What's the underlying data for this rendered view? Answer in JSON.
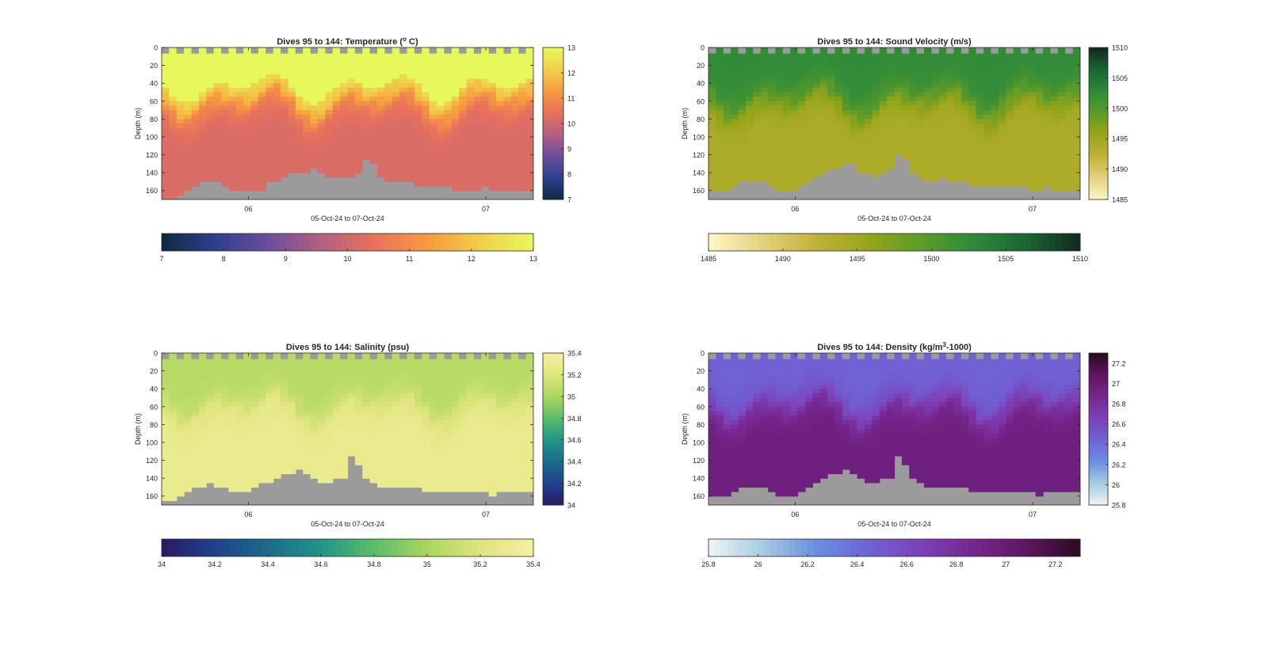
{
  "chart_data": [
    {
      "type": "heatmap",
      "title": "Dives 95 to 144: Temperature (° C)",
      "title_main": "Dives 95 to 144: Temperature (",
      "title_sup": "o",
      "title_tail": " C)",
      "xlabel": "05-Oct-24 to 07-Oct-24",
      "ylabel": "Depth (m)",
      "ylim": [
        170,
        0
      ],
      "yticks": [
        0,
        20,
        40,
        60,
        80,
        100,
        120,
        140,
        160
      ],
      "xticks": [
        "06",
        "07"
      ],
      "xtick_days": [
        1.0,
        2.0
      ],
      "x_range_days": [
        0.635,
        2.2
      ],
      "colorbar_range": [
        7,
        13
      ],
      "colorbar_ticks": [
        7,
        8,
        9,
        10,
        11,
        12,
        13
      ],
      "colormap": [
        "#0d2a3f",
        "#2e3f8f",
        "#6b4d9c",
        "#b35f82",
        "#e8715c",
        "#f79a3e",
        "#f0d04a",
        "#e6f85c"
      ],
      "field": {
        "surface_value": 12.7,
        "bottom_value": 10.2,
        "mixed_layer_depth_m": 60,
        "mixed_layer_variation_m": 20,
        "surface_color": "#e6f85c"
      },
      "bottom_depth_m": [
        170,
        168,
        165,
        160,
        155,
        152,
        150,
        152,
        155,
        160,
        162,
        161,
        160,
        158,
        152,
        148,
        145,
        142,
        140,
        138,
        137,
        140,
        143,
        146,
        147,
        144,
        140,
        125,
        132,
        145,
        150,
        152,
        152,
        152,
        153,
        154,
        155,
        156,
        157,
        158,
        159,
        158,
        158,
        157,
        158,
        159,
        160,
        158,
        159,
        160
      ]
    },
    {
      "type": "heatmap",
      "title": "Dives 95 to 144: Sound Velocity (m/s)",
      "title_main": "Dives 95 to 144: Sound Velocity (m/s)",
      "title_sup": "",
      "title_tail": "",
      "xlabel": "05-Oct-24 to 07-Oct-24",
      "ylabel": "Depth (m)",
      "ylim": [
        170,
        0
      ],
      "yticks": [
        0,
        20,
        40,
        60,
        80,
        100,
        120,
        140,
        160
      ],
      "xticks": [
        "06",
        "07"
      ],
      "xtick_days": [
        1.0,
        2.0
      ],
      "x_range_days": [
        0.635,
        2.2
      ],
      "colorbar_range": [
        1485,
        1510
      ],
      "colorbar_ticks": [
        1485,
        1490,
        1495,
        1500,
        1505,
        1510
      ],
      "colormap": [
        "#fdf7c9",
        "#e4d27e",
        "#c2b33a",
        "#98a51a",
        "#5d9b28",
        "#2c8a3a",
        "#1a6534",
        "#12291c"
      ],
      "field": {
        "surface_value": 1502.5,
        "bottom_value": 1494.0,
        "mixed_layer_depth_m": 60,
        "mixed_layer_variation_m": 20,
        "surface_color": ""
      },
      "bottom_depth_m": [
        162,
        160,
        158,
        156,
        152,
        150,
        148,
        150,
        155,
        158,
        160,
        158,
        156,
        150,
        145,
        140,
        137,
        133,
        130,
        132,
        138,
        142,
        145,
        140,
        136,
        118,
        125,
        138,
        145,
        148,
        148,
        147,
        149,
        150,
        152,
        153,
        154,
        155,
        156,
        157,
        157,
        156,
        157,
        158,
        158,
        157,
        158,
        159,
        158,
        159
      ]
    },
    {
      "type": "heatmap",
      "title": "Dives 95 to 144: Salinity (psu)",
      "title_main": "Dives 95 to 144: Salinity (psu)",
      "title_sup": "",
      "title_tail": "",
      "xlabel": "05-Oct-24 to 07-Oct-24",
      "ylabel": "Depth (m)",
      "ylim": [
        170,
        0
      ],
      "yticks": [
        0,
        20,
        40,
        60,
        80,
        100,
        120,
        140,
        160
      ],
      "xticks": [
        "06",
        "07"
      ],
      "xtick_days": [
        1.0,
        2.0
      ],
      "x_range_days": [
        0.635,
        2.2
      ],
      "colorbar_range": [
        34,
        35.4
      ],
      "colorbar_ticks": [
        34,
        34.2,
        34.4,
        34.6,
        34.8,
        35,
        35.2,
        35.4
      ],
      "colormap": [
        "#2a1a63",
        "#21418f",
        "#1b6b8c",
        "#209586",
        "#5bbd6a",
        "#a9d65c",
        "#dfe57e",
        "#f6efa0"
      ],
      "field": {
        "surface_value": 35.05,
        "bottom_value": 35.3,
        "mixed_layer_depth_m": 60,
        "mixed_layer_variation_m": 20,
        "surface_color": ""
      },
      "bottom_depth_m": [
        165,
        163,
        160,
        155,
        150,
        148,
        145,
        148,
        152,
        155,
        157,
        156,
        152,
        147,
        143,
        140,
        137,
        133,
        132,
        134,
        140,
        144,
        146,
        142,
        138,
        115,
        125,
        140,
        146,
        148,
        148,
        149,
        150,
        151,
        152,
        153,
        154,
        155,
        156,
        155,
        156,
        157,
        156,
        157,
        158,
        157,
        156,
        157,
        156,
        155
      ]
    },
    {
      "type": "heatmap",
      "title": "Dives 95 to 144: Density (kg/m³-1000)",
      "title_main": "Dives 95 to 144: Density (kg/m",
      "title_sup": "3",
      "title_tail": "-1000)",
      "xlabel": "05-Oct-24 to 07-Oct-24",
      "ylabel": "Depth (m)",
      "ylim": [
        170,
        0
      ],
      "yticks": [
        0,
        20,
        40,
        60,
        80,
        100,
        120,
        140,
        160
      ],
      "xticks": [
        "06",
        "07"
      ],
      "xtick_days": [
        1.0,
        2.0
      ],
      "x_range_days": [
        0.635,
        2.2
      ],
      "colorbar_range": [
        25.8,
        27.3
      ],
      "colorbar_ticks": [
        25.8,
        26,
        26.2,
        26.4,
        26.6,
        26.8,
        27,
        27.2
      ],
      "colormap": [
        "#eef4f4",
        "#a8cde3",
        "#6b8fe0",
        "#6f63d6",
        "#7d41b8",
        "#77268f",
        "#5f1560",
        "#2b0b21"
      ],
      "field": {
        "surface_value": 26.45,
        "bottom_value": 26.95,
        "mixed_layer_depth_m": 60,
        "mixed_layer_variation_m": 20,
        "surface_color": ""
      },
      "bottom_depth_m": [
        162,
        160,
        158,
        156,
        152,
        150,
        148,
        150,
        155,
        158,
        160,
        158,
        155,
        150,
        145,
        140,
        137,
        133,
        132,
        134,
        140,
        144,
        146,
        142,
        138,
        115,
        125,
        140,
        146,
        148,
        148,
        149,
        150,
        151,
        152,
        153,
        154,
        155,
        156,
        155,
        156,
        157,
        156,
        157,
        158,
        157,
        156,
        157,
        156,
        155
      ]
    }
  ]
}
